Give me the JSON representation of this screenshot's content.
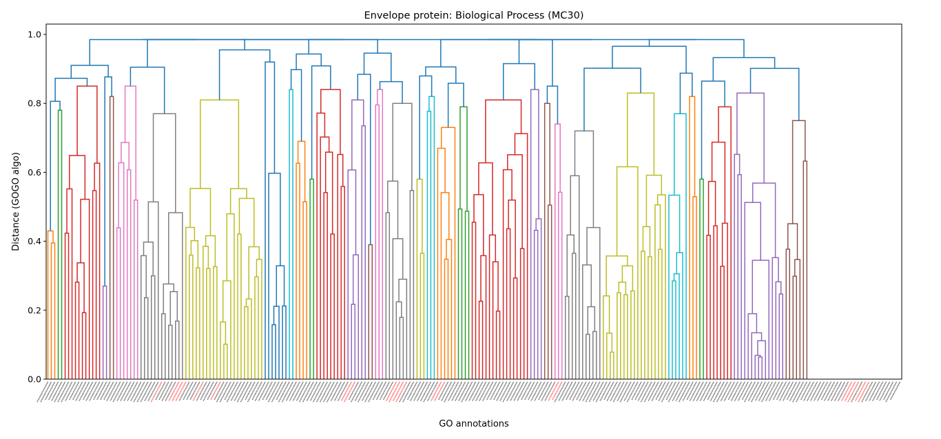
{
  "chart_data": {
    "type": "dendrogram",
    "title": "Envelope protein: Biological Process (MC30)",
    "xlabel": "GO annotations",
    "ylabel": "Distance (GOGO algo)",
    "ylim": [
      0,
      1.03
    ],
    "yticks": [
      0.0,
      0.2,
      0.4,
      0.6,
      0.8,
      1.0
    ],
    "grid": false,
    "leaf_count": 248,
    "link_color": "#1f77b4",
    "clusters": [
      {
        "color": "#ff7f0e",
        "leaves": 3,
        "height": 0.43
      },
      {
        "color": "#2ca02c",
        "leaves": 2,
        "height": 0.78
      },
      {
        "color": "#d62728",
        "leaves": 11,
        "height": 0.85
      },
      {
        "color": "#9467bd",
        "leaves": 2,
        "height": 0.27
      },
      {
        "color": "#8c564b",
        "leaves": 2,
        "height": 0.82
      },
      {
        "color": "#e377c2",
        "leaves": 7,
        "height": 0.85
      },
      {
        "color": "#7f7f7f",
        "leaves": 13,
        "height": 0.77
      },
      {
        "color": "#bcbd22",
        "leaves": 23,
        "height": 0.81
      },
      {
        "color": "#1f77b4",
        "leaves": 7,
        "height": 0.92
      },
      {
        "color": "#17becf",
        "leaves": 2,
        "height": 0.84
      },
      {
        "color": "#ff7f0e",
        "leaves": 4,
        "height": 0.69
      },
      {
        "color": "#2ca02c",
        "leaves": 2,
        "height": 0.58
      },
      {
        "color": "#d62728",
        "leaves": 9,
        "height": 0.84
      },
      {
        "color": "#9467bd",
        "leaves": 6,
        "height": 0.81
      },
      {
        "color": "#8c564b",
        "leaves": 2,
        "height": 0.39
      },
      {
        "color": "#e377c2",
        "leaves": 3,
        "height": 0.84
      },
      {
        "color": "#7f7f7f",
        "leaves": 9,
        "height": 0.8
      },
      {
        "color": "#bcbd22",
        "leaves": 3,
        "height": 0.58
      },
      {
        "color": "#17becf",
        "leaves": 3,
        "height": 0.82
      },
      {
        "color": "#ff7f0e",
        "leaves": 6,
        "height": 0.73
      },
      {
        "color": "#2ca02c",
        "leaves": 4,
        "height": 0.79
      },
      {
        "color": "#d62728",
        "leaves": 17,
        "height": 0.81
      },
      {
        "color": "#9467bd",
        "leaves": 4,
        "height": 0.84
      },
      {
        "color": "#8c564b",
        "leaves": 3,
        "height": 0.8
      },
      {
        "color": "#e377c2",
        "leaves": 3,
        "height": 0.74
      },
      {
        "color": "#7f7f7f",
        "leaves": 11,
        "height": 0.72
      },
      {
        "color": "#bcbd22",
        "leaves": 19,
        "height": 0.83
      },
      {
        "color": "#17becf",
        "leaves": 6,
        "height": 0.77
      },
      {
        "color": "#ff7f0e",
        "leaves": 3,
        "height": 0.82
      },
      {
        "color": "#2ca02c",
        "leaves": 2,
        "height": 0.58
      },
      {
        "color": "#d62728",
        "leaves": 8,
        "height": 0.79
      },
      {
        "color": "#9467bd",
        "leaves": 15,
        "height": 0.83
      },
      {
        "color": "#8c564b",
        "leaves": 7,
        "height": 0.75
      }
    ],
    "leaf_label_color": "#595959",
    "highlight_label_color": "#ff4d4d",
    "highlighted_leaves": [
      33,
      38,
      39,
      40,
      45,
      50,
      88,
      89,
      101,
      102,
      103,
      104,
      114,
      115,
      148,
      149,
      233,
      234,
      235,
      237,
      238
    ]
  }
}
